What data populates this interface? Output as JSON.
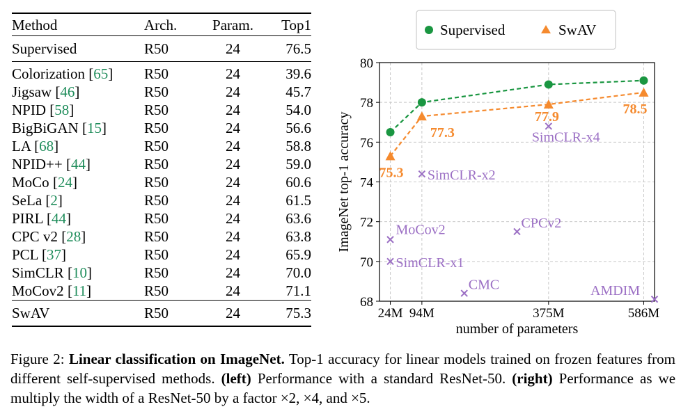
{
  "table": {
    "headers": {
      "method": "Method",
      "arch": "Arch.",
      "param": "Param.",
      "top1": "Top1"
    },
    "supervised": {
      "method": "Supervised",
      "arch": "R50",
      "param": "24",
      "top1": "76.5"
    },
    "rows": [
      {
        "method": "Colorization",
        "cite": "65",
        "arch": "R50",
        "param": "24",
        "top1": "39.6"
      },
      {
        "method": "Jigsaw",
        "cite": "46",
        "arch": "R50",
        "param": "24",
        "top1": "45.7"
      },
      {
        "method": "NPID",
        "cite": "58",
        "arch": "R50",
        "param": "24",
        "top1": "54.0"
      },
      {
        "method": "BigBiGAN",
        "cite": "15",
        "arch": "R50",
        "param": "24",
        "top1": "56.6"
      },
      {
        "method": "LA",
        "cite": "68",
        "arch": "R50",
        "param": "24",
        "top1": "58.8"
      },
      {
        "method": "NPID++",
        "cite": "44",
        "arch": "R50",
        "param": "24",
        "top1": "59.0"
      },
      {
        "method": "MoCo",
        "cite": "24",
        "arch": "R50",
        "param": "24",
        "top1": "60.6"
      },
      {
        "method": "SeLa",
        "cite": "2",
        "arch": "R50",
        "param": "24",
        "top1": "61.5"
      },
      {
        "method": "PIRL",
        "cite": "44",
        "arch": "R50",
        "param": "24",
        "top1": "63.6"
      },
      {
        "method": "CPC v2",
        "cite": "28",
        "arch": "R50",
        "param": "24",
        "top1": "63.8"
      },
      {
        "method": "PCL",
        "cite": "37",
        "arch": "R50",
        "param": "24",
        "top1": "65.9"
      },
      {
        "method": "SimCLR",
        "cite": "10",
        "arch": "R50",
        "param": "24",
        "top1": "70.0"
      },
      {
        "method": "MoCov2",
        "cite": "11",
        "arch": "R50",
        "param": "24",
        "top1": "71.1"
      }
    ],
    "swav": {
      "method": "SwAV",
      "arch": "R50",
      "param": "24",
      "top1": "75.3"
    }
  },
  "chart_data": {
    "type": "line",
    "title": "",
    "xlabel": "number of parameters",
    "ylabel": "ImageNet top-1 accuracy",
    "x_ticks": [
      {
        "value": 24,
        "label": "24M"
      },
      {
        "value": 94,
        "label": "94M"
      },
      {
        "value": 375,
        "label": "375M"
      },
      {
        "value": 586,
        "label": "586M"
      }
    ],
    "xlim": [
      0,
      610
    ],
    "ylim": [
      68,
      80
    ],
    "y_ticks": [
      68,
      70,
      72,
      74,
      76,
      78,
      80
    ],
    "grid": true,
    "legend_position": "top",
    "series": [
      {
        "name": "Supervised",
        "color": "#1a9641",
        "marker": "circle",
        "linestyle": "dashed",
        "points": [
          {
            "x": 24,
            "y": 76.5
          },
          {
            "x": 94,
            "y": 78.0
          },
          {
            "x": 375,
            "y": 78.9
          },
          {
            "x": 586,
            "y": 79.1
          }
        ]
      },
      {
        "name": "SwAV",
        "color": "#f58a2e",
        "marker": "triangle",
        "linestyle": "dashed",
        "points": [
          {
            "x": 24,
            "y": 75.3,
            "label": "75.3"
          },
          {
            "x": 94,
            "y": 77.3,
            "label": "77.3"
          },
          {
            "x": 375,
            "y": 77.9,
            "label": "77.9"
          },
          {
            "x": 586,
            "y": 78.5,
            "label": "78.5"
          }
        ]
      }
    ],
    "scatter": {
      "color": "#9b6fc4",
      "marker": "x",
      "points": [
        {
          "x": 24,
          "y": 71.1,
          "label": "MoCov2"
        },
        {
          "x": 24,
          "y": 70.0,
          "label": "SimCLR-x1"
        },
        {
          "x": 94,
          "y": 74.4,
          "label": "SimCLR-x2"
        },
        {
          "x": 375,
          "y": 76.8,
          "label": "SimCLR-x4"
        },
        {
          "x": 305,
          "y": 71.5,
          "label": "CPCv2"
        },
        {
          "x": 188,
          "y": 68.4,
          "label": "CMC"
        },
        {
          "x": 626,
          "y": 68.1,
          "label": "AMDIM"
        }
      ]
    }
  },
  "caption": {
    "fig_num": "Figure 2:",
    "title": "Linear classification on ImageNet.",
    "text1": "Top-1 accuracy for linear models trained on frozen features from different self-supervised methods.",
    "left_label": "(left)",
    "text2": "Performance with a standard ResNet-50.",
    "right_label": "(right)",
    "text3": "Performance as we multiply the width of a ResNet-50 by a factor ×2, ×4, and ×5."
  }
}
